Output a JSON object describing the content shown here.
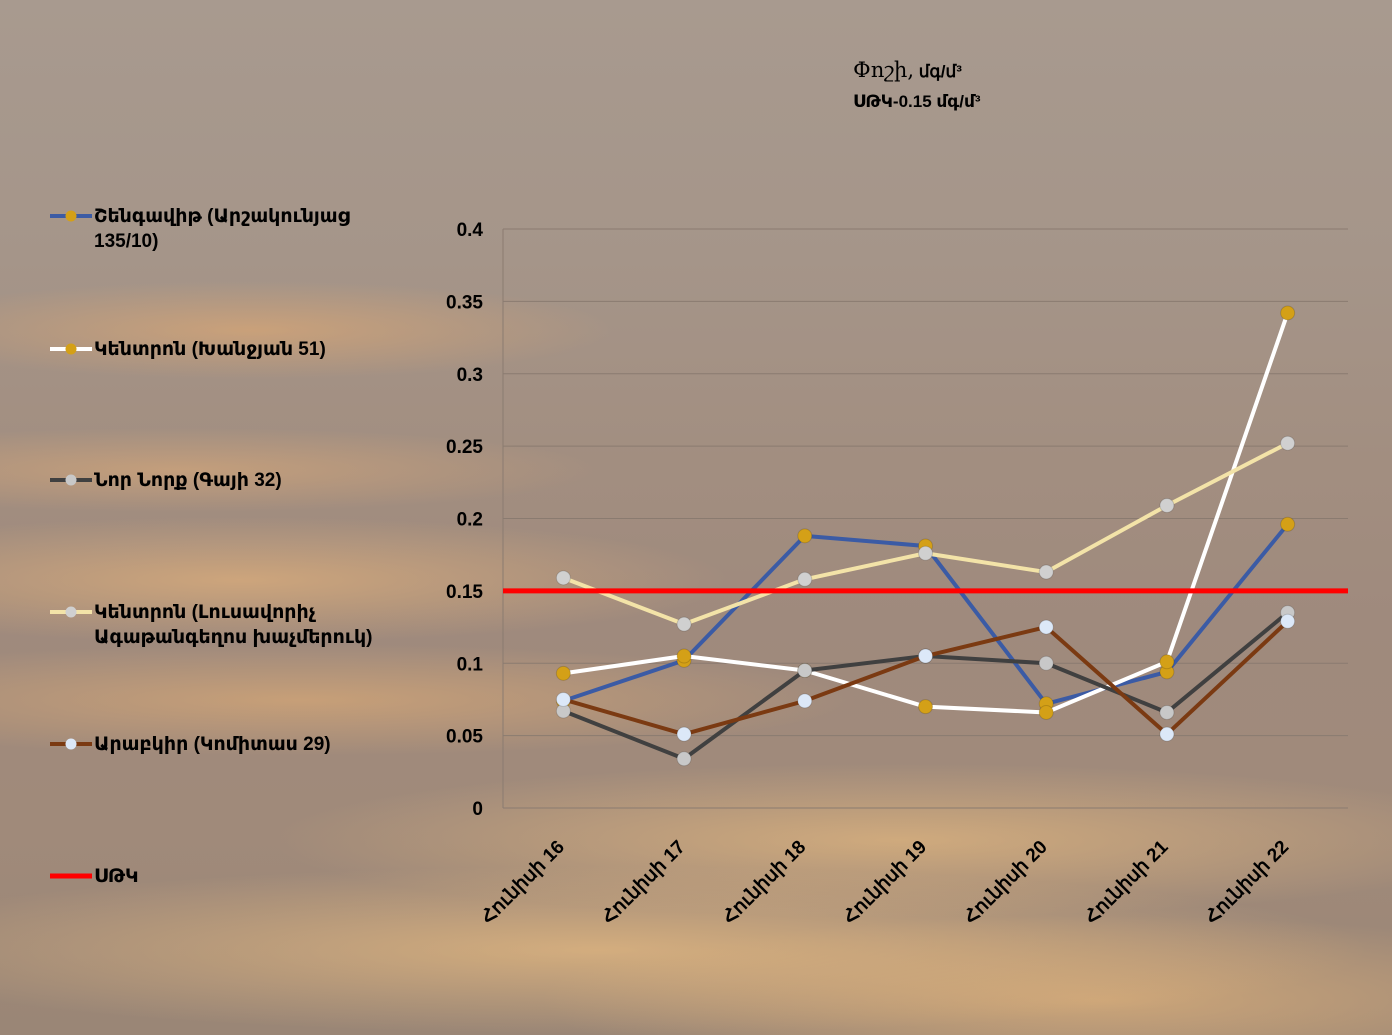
{
  "title_main": "Փոշի,",
  "title_unit": " մգ/մ³",
  "subtitle": "ՍԹԿ-0.15 մգ/մ³",
  "chart_data": {
    "type": "line",
    "title": "Փոշի, մգ/մ³",
    "subtitle": "ՍԹԿ-0.15 մգ/մ³",
    "xlabel": "",
    "ylabel": "",
    "categories": [
      "Հունիսի 16",
      "Հունիսի 17",
      "Հունիսի 18",
      "Հունիսի 19",
      "Հունիսի 20",
      "Հունիսի 21",
      "Հունիսի 22"
    ],
    "ylim": [
      0,
      0.4
    ],
    "yticks": [
      "0",
      "0.05",
      "0.1",
      "0.15",
      "0.2",
      "0.25",
      "0.3",
      "0.35",
      "0.4"
    ],
    "grid": true,
    "legend_position": "left",
    "series": [
      {
        "name": "Շենգավիթ (Արշակունյաց 135/10)",
        "line_color": "#3b5ba5",
        "marker_color": "#d4a017",
        "values": [
          0.074,
          0.102,
          0.188,
          0.181,
          0.072,
          0.094,
          0.196
        ]
      },
      {
        "name": "Կենտրոն (Խանջյան 51)",
        "line_color": "#ffffff",
        "marker_color": "#d4a017",
        "values": [
          0.093,
          0.105,
          0.095,
          0.07,
          0.066,
          0.101,
          0.342
        ]
      },
      {
        "name": "Նոր Նորք (Գայի 32)",
        "line_color": "#404040",
        "marker_color": "#c8c8c8",
        "values": [
          0.067,
          0.034,
          0.095,
          0.105,
          0.1,
          0.066,
          0.135
        ]
      },
      {
        "name": "Կենտրոն (Լուսավորիչ Ագաթանգեղոս խաչմերուկ)",
        "line_color": "#f3e3a8",
        "marker_color": "#d0d0d0",
        "values": [
          0.159,
          0.127,
          0.158,
          0.176,
          0.163,
          0.209,
          0.252
        ]
      },
      {
        "name": "Արաբկիր (Կոմիտաս 29)",
        "line_color": "#7b3a12",
        "marker_color": "#dce8f8",
        "values": [
          0.075,
          0.051,
          0.074,
          0.105,
          0.125,
          0.051,
          0.129
        ]
      },
      {
        "name": "ՍԹԿ",
        "line_color": "#ff0000",
        "marker_color": null,
        "values": [
          0.15,
          0.15,
          0.15,
          0.15,
          0.15,
          0.15,
          0.15
        ]
      }
    ]
  }
}
